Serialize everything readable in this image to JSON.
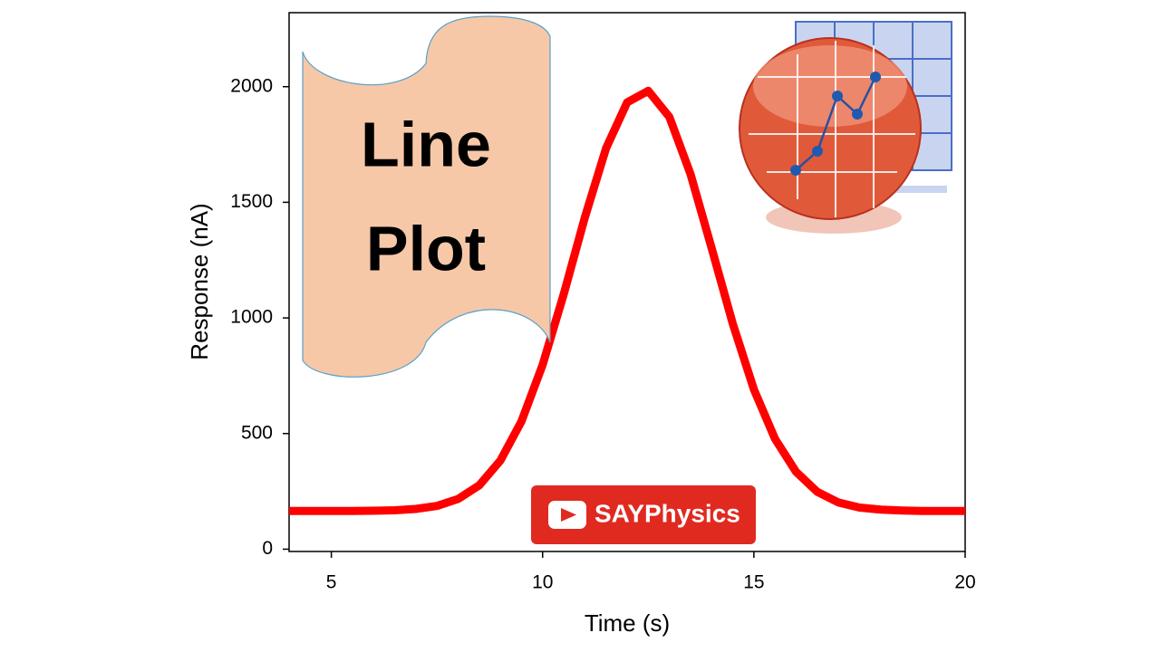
{
  "chart_data": {
    "type": "line",
    "x_label": "Time (s)",
    "y_label": "Response (nA)",
    "annotations": [
      "Line",
      "Plot",
      "SAYPhysics"
    ],
    "x": [
      4,
      4.5,
      5,
      5.5,
      6,
      6.5,
      7,
      7.5,
      8,
      8.5,
      9,
      9.5,
      10,
      10.5,
      11,
      11.5,
      12,
      12.5,
      13,
      13.5,
      14,
      14.5,
      15,
      15.5,
      16,
      16.5,
      17,
      17.5,
      18,
      18.5,
      19,
      19.5,
      20
    ],
    "values": [
      165,
      165,
      165,
      165,
      166,
      168,
      174,
      187,
      217,
      276,
      383,
      553,
      797,
      1103,
      1435,
      1733,
      1932,
      1982,
      1869,
      1622,
      1302,
      975,
      691,
      477,
      334,
      248,
      202,
      180,
      171,
      167,
      165,
      165,
      165
    ],
    "color": "#ff0000",
    "xlim": [
      4,
      20
    ],
    "xticks": [
      5,
      10,
      15,
      20
    ],
    "ylim": [
      -10,
      2320
    ],
    "yticks": [
      0,
      500,
      1000,
      1500,
      2000
    ]
  }
}
